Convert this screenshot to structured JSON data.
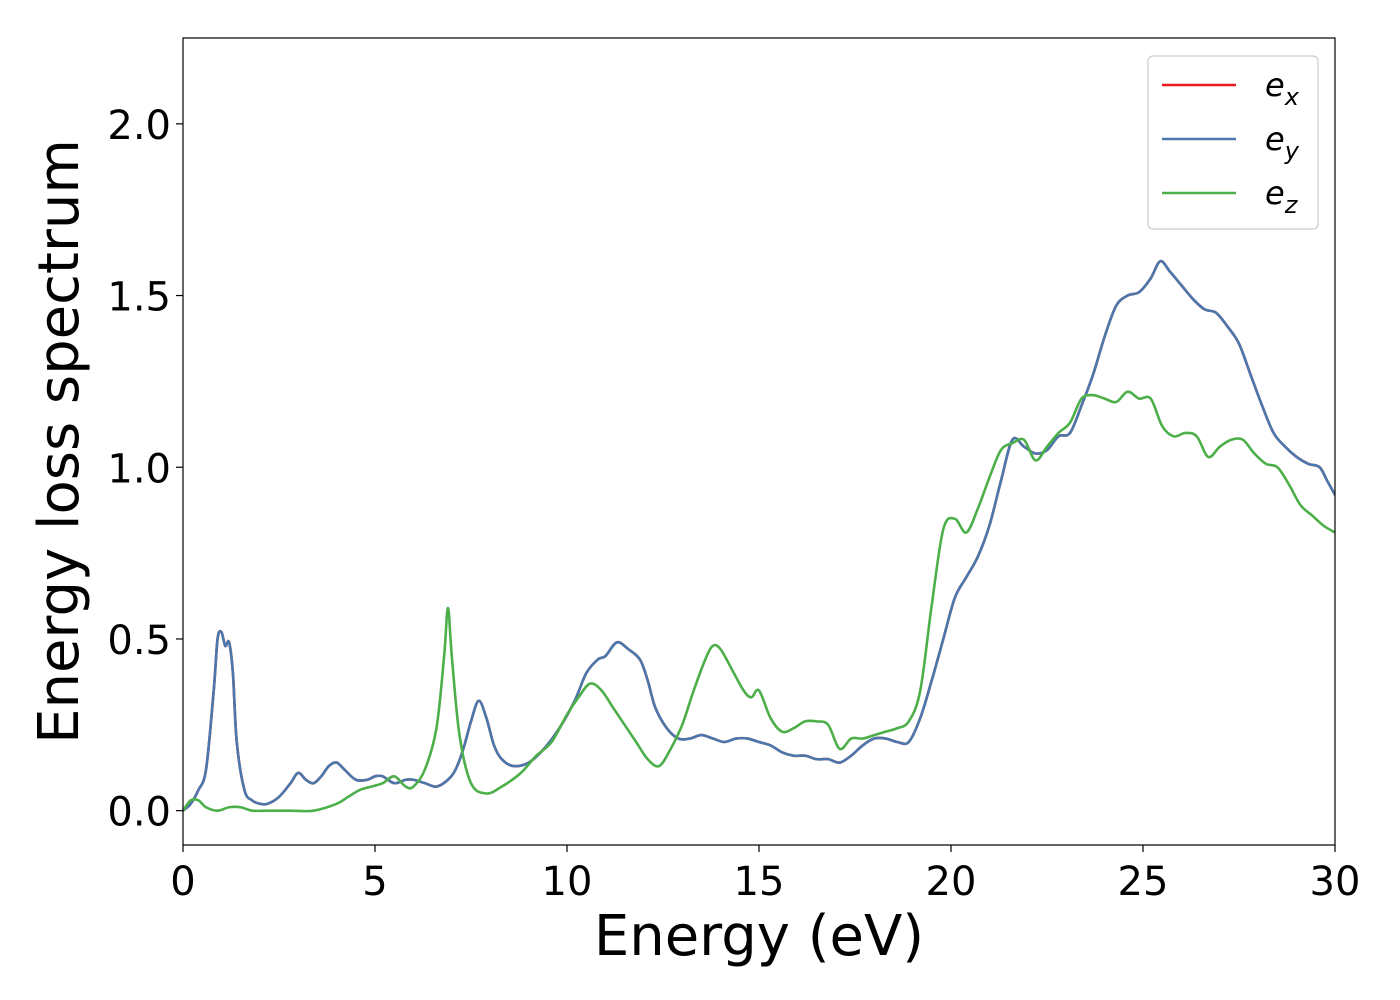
{
  "chart_data": {
    "type": "line",
    "title": "",
    "xlabel": "Energy (eV)",
    "ylabel": "Energy loss spectrum",
    "xlim": [
      0,
      30
    ],
    "ylim": [
      -0.1,
      2.25
    ],
    "xticks": [
      0,
      5,
      10,
      15,
      20,
      25,
      30
    ],
    "xtick_labels": [
      "0",
      "5",
      "10",
      "15",
      "20",
      "25",
      "30"
    ],
    "yticks": [
      0.0,
      0.5,
      1.0,
      1.5,
      2.0
    ],
    "ytick_labels": [
      "0.0",
      "0.5",
      "1.0",
      "1.5",
      "2.0"
    ],
    "grid": false,
    "legend_position": "top-right",
    "series": [
      {
        "name": "e_x",
        "legend_base": "e",
        "legend_sub": "x",
        "color": "#e41a1c",
        "x": [
          0,
          0.2,
          0.4,
          0.6,
          0.8,
          0.9,
          1.0,
          1.1,
          1.2,
          1.3,
          1.4,
          1.6,
          1.8,
          2.0,
          2.2,
          2.5,
          2.8,
          3.0,
          3.2,
          3.4,
          3.6,
          3.8,
          4.0,
          4.2,
          4.5,
          4.8,
          5.0,
          5.2,
          5.5,
          5.8,
          6.0,
          6.3,
          6.6,
          6.9,
          7.1,
          7.3,
          7.5,
          7.7,
          7.9,
          8.1,
          8.3,
          8.6,
          9.0,
          9.4,
          9.8,
          10.2,
          10.5,
          10.8,
          11.0,
          11.3,
          11.6,
          11.9,
          12.1,
          12.3,
          12.6,
          12.9,
          13.2,
          13.5,
          13.8,
          14.1,
          14.4,
          14.7,
          15.0,
          15.3,
          15.6,
          15.9,
          16.2,
          16.5,
          16.8,
          17.1,
          17.4,
          17.7,
          18.0,
          18.3,
          18.6,
          18.9,
          19.2,
          19.5,
          19.8,
          20.1,
          20.4,
          20.7,
          21.0,
          21.3,
          21.6,
          21.9,
          22.2,
          22.5,
          22.8,
          23.1,
          23.4,
          23.7,
          24.0,
          24.3,
          24.6,
          24.9,
          25.2,
          25.45,
          25.7,
          26.0,
          26.3,
          26.6,
          26.9,
          27.2,
          27.5,
          27.8,
          28.1,
          28.4,
          28.7,
          29.0,
          29.3,
          29.6,
          29.8,
          30.0
        ],
        "y": [
          0.0,
          0.02,
          0.06,
          0.12,
          0.35,
          0.5,
          0.52,
          0.48,
          0.49,
          0.4,
          0.2,
          0.06,
          0.03,
          0.02,
          0.02,
          0.04,
          0.08,
          0.11,
          0.09,
          0.08,
          0.1,
          0.13,
          0.14,
          0.12,
          0.09,
          0.09,
          0.1,
          0.1,
          0.08,
          0.09,
          0.09,
          0.08,
          0.07,
          0.09,
          0.12,
          0.18,
          0.26,
          0.32,
          0.27,
          0.19,
          0.15,
          0.13,
          0.14,
          0.18,
          0.24,
          0.32,
          0.4,
          0.44,
          0.45,
          0.49,
          0.47,
          0.44,
          0.38,
          0.3,
          0.24,
          0.21,
          0.21,
          0.22,
          0.21,
          0.2,
          0.21,
          0.21,
          0.2,
          0.19,
          0.17,
          0.16,
          0.16,
          0.15,
          0.15,
          0.14,
          0.16,
          0.19,
          0.21,
          0.21,
          0.2,
          0.2,
          0.27,
          0.38,
          0.5,
          0.62,
          0.68,
          0.74,
          0.83,
          0.96,
          1.08,
          1.06,
          1.04,
          1.05,
          1.09,
          1.1,
          1.18,
          1.27,
          1.38,
          1.47,
          1.5,
          1.51,
          1.55,
          1.6,
          1.57,
          1.53,
          1.49,
          1.46,
          1.45,
          1.41,
          1.36,
          1.27,
          1.18,
          1.1,
          1.06,
          1.03,
          1.01,
          1.0,
          0.96,
          0.92
        ]
      },
      {
        "name": "e_y",
        "legend_base": "e",
        "legend_sub": "y",
        "color": "#4a78ad",
        "x": [
          0,
          0.2,
          0.4,
          0.6,
          0.8,
          0.9,
          1.0,
          1.1,
          1.2,
          1.3,
          1.4,
          1.6,
          1.8,
          2.0,
          2.2,
          2.5,
          2.8,
          3.0,
          3.2,
          3.4,
          3.6,
          3.8,
          4.0,
          4.2,
          4.5,
          4.8,
          5.0,
          5.2,
          5.5,
          5.8,
          6.0,
          6.3,
          6.6,
          6.9,
          7.1,
          7.3,
          7.5,
          7.7,
          7.9,
          8.1,
          8.3,
          8.6,
          9.0,
          9.4,
          9.8,
          10.2,
          10.5,
          10.8,
          11.0,
          11.3,
          11.6,
          11.9,
          12.1,
          12.3,
          12.6,
          12.9,
          13.2,
          13.5,
          13.8,
          14.1,
          14.4,
          14.7,
          15.0,
          15.3,
          15.6,
          15.9,
          16.2,
          16.5,
          16.8,
          17.1,
          17.4,
          17.7,
          18.0,
          18.3,
          18.6,
          18.9,
          19.2,
          19.5,
          19.8,
          20.1,
          20.4,
          20.7,
          21.0,
          21.3,
          21.6,
          21.9,
          22.2,
          22.5,
          22.8,
          23.1,
          23.4,
          23.7,
          24.0,
          24.3,
          24.6,
          24.9,
          25.2,
          25.45,
          25.7,
          26.0,
          26.3,
          26.6,
          26.9,
          27.2,
          27.5,
          27.8,
          28.1,
          28.4,
          28.7,
          29.0,
          29.3,
          29.6,
          29.8,
          30.0
        ],
        "y": [
          0.0,
          0.02,
          0.06,
          0.12,
          0.35,
          0.5,
          0.52,
          0.48,
          0.49,
          0.4,
          0.2,
          0.06,
          0.03,
          0.02,
          0.02,
          0.04,
          0.08,
          0.11,
          0.09,
          0.08,
          0.1,
          0.13,
          0.14,
          0.12,
          0.09,
          0.09,
          0.1,
          0.1,
          0.08,
          0.09,
          0.09,
          0.08,
          0.07,
          0.09,
          0.12,
          0.18,
          0.26,
          0.32,
          0.27,
          0.19,
          0.15,
          0.13,
          0.14,
          0.18,
          0.24,
          0.32,
          0.4,
          0.44,
          0.45,
          0.49,
          0.47,
          0.44,
          0.38,
          0.3,
          0.24,
          0.21,
          0.21,
          0.22,
          0.21,
          0.2,
          0.21,
          0.21,
          0.2,
          0.19,
          0.17,
          0.16,
          0.16,
          0.15,
          0.15,
          0.14,
          0.16,
          0.19,
          0.21,
          0.21,
          0.2,
          0.2,
          0.27,
          0.38,
          0.5,
          0.62,
          0.68,
          0.74,
          0.83,
          0.96,
          1.08,
          1.06,
          1.04,
          1.05,
          1.09,
          1.1,
          1.18,
          1.27,
          1.38,
          1.47,
          1.5,
          1.51,
          1.55,
          1.6,
          1.57,
          1.53,
          1.49,
          1.46,
          1.45,
          1.41,
          1.36,
          1.27,
          1.18,
          1.1,
          1.06,
          1.03,
          1.01,
          1.0,
          0.96,
          0.92
        ]
      },
      {
        "name": "e_z",
        "legend_base": "e",
        "legend_sub": "z",
        "color": "#4daf4a",
        "x": [
          0,
          0.2,
          0.4,
          0.6,
          0.9,
          1.2,
          1.5,
          1.8,
          2.2,
          2.8,
          3.4,
          4.0,
          4.3,
          4.6,
          4.9,
          5.2,
          5.5,
          5.8,
          6.0,
          6.3,
          6.6,
          6.8,
          6.9,
          7.0,
          7.2,
          7.5,
          7.9,
          8.3,
          8.8,
          9.2,
          9.6,
          10.0,
          10.3,
          10.6,
          10.9,
          11.2,
          11.5,
          11.8,
          12.1,
          12.4,
          12.7,
          13.0,
          13.3,
          13.6,
          13.8,
          14.0,
          14.3,
          14.6,
          14.8,
          15.0,
          15.3,
          15.6,
          15.9,
          16.2,
          16.5,
          16.8,
          17.1,
          17.4,
          17.7,
          18.0,
          18.3,
          18.6,
          18.9,
          19.2,
          19.5,
          19.8,
          20.1,
          20.4,
          20.7,
          21.0,
          21.3,
          21.6,
          21.9,
          22.2,
          22.5,
          22.8,
          23.1,
          23.4,
          23.7,
          24.0,
          24.3,
          24.6,
          24.9,
          25.2,
          25.5,
          25.8,
          26.1,
          26.4,
          26.7,
          27.0,
          27.3,
          27.6,
          27.9,
          28.2,
          28.5,
          28.8,
          29.1,
          29.4,
          29.7,
          30.0
        ],
        "y": [
          0.0,
          0.03,
          0.03,
          0.01,
          0.0,
          0.01,
          0.01,
          0.0,
          0.0,
          0.0,
          0.0,
          0.02,
          0.04,
          0.06,
          0.07,
          0.08,
          0.1,
          0.07,
          0.07,
          0.12,
          0.24,
          0.45,
          0.59,
          0.45,
          0.22,
          0.08,
          0.05,
          0.07,
          0.11,
          0.16,
          0.2,
          0.28,
          0.33,
          0.37,
          0.35,
          0.3,
          0.25,
          0.2,
          0.15,
          0.13,
          0.18,
          0.25,
          0.35,
          0.44,
          0.48,
          0.47,
          0.41,
          0.35,
          0.33,
          0.35,
          0.27,
          0.23,
          0.24,
          0.26,
          0.26,
          0.25,
          0.18,
          0.21,
          0.21,
          0.22,
          0.23,
          0.24,
          0.26,
          0.35,
          0.6,
          0.82,
          0.85,
          0.81,
          0.88,
          0.97,
          1.05,
          1.07,
          1.08,
          1.02,
          1.06,
          1.1,
          1.13,
          1.2,
          1.21,
          1.2,
          1.19,
          1.22,
          1.2,
          1.2,
          1.12,
          1.09,
          1.1,
          1.09,
          1.03,
          1.06,
          1.08,
          1.08,
          1.04,
          1.01,
          1.0,
          0.95,
          0.89,
          0.86,
          0.83,
          0.81
        ]
      }
    ]
  }
}
